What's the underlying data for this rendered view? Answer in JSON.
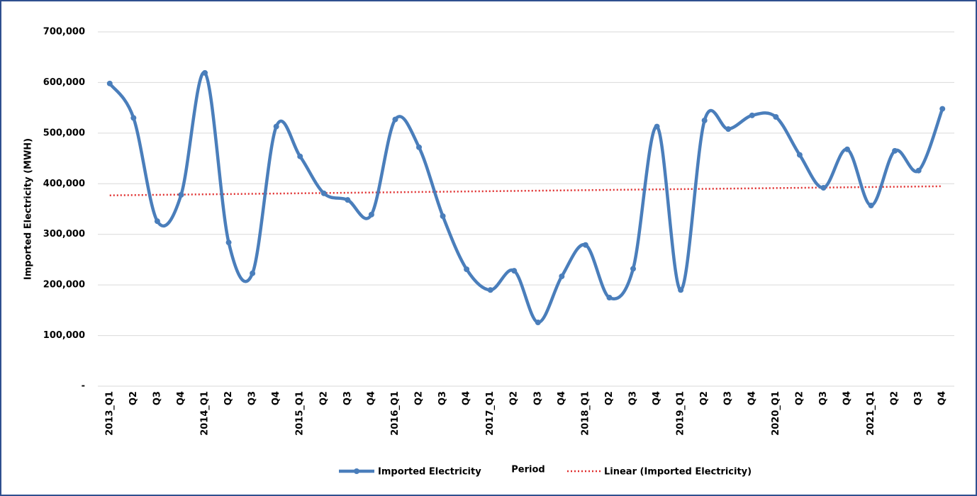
{
  "chart_data": {
    "type": "line",
    "xlabel": "Period",
    "ylabel": "Imported Electricity (MWH)",
    "categories": [
      "2013_Q1",
      "Q2",
      "Q3",
      "Q4",
      "2014_Q1",
      "Q2",
      "Q3",
      "Q4",
      "2015_Q1",
      "Q2",
      "Q3",
      "Q4",
      "2016_Q1",
      "Q2",
      "Q3",
      "Q4",
      "2017_Q1",
      "Q2",
      "Q3",
      "Q4",
      "2018_Q1",
      "Q2",
      "Q3",
      "Q4",
      "2019_Q1",
      "Q2",
      "Q3",
      "Q4",
      "2020_Q1",
      "Q2",
      "Q3",
      "Q4",
      "2021_Q1",
      "Q2",
      "Q3",
      "Q4"
    ],
    "series": [
      {
        "name": "Imported Electricity",
        "color": "#4a7ebb",
        "values": [
          598000,
          530000,
          326000,
          378000,
          619000,
          284000,
          223000,
          513000,
          454000,
          381000,
          368000,
          339000,
          527000,
          472000,
          336000,
          231000,
          190000,
          228000,
          126000,
          217000,
          279000,
          175000,
          232000,
          513000,
          190000,
          525000,
          508000,
          535000,
          532000,
          457000,
          392000,
          468000,
          357000,
          465000,
          426000,
          548000
        ]
      }
    ],
    "trendline": {
      "name": "Linear (Imported Electricity)",
      "color": "#e03030",
      "start": 377000,
      "end": 395000
    },
    "ylim": [
      0,
      700000
    ],
    "yticks": [
      {
        "value": 0,
        "label": "-"
      },
      {
        "value": 100000,
        "label": "100,000"
      },
      {
        "value": 200000,
        "label": "200,000"
      },
      {
        "value": 300000,
        "label": "300,000"
      },
      {
        "value": 400000,
        "label": "400,000"
      },
      {
        "value": 500000,
        "label": "500,000"
      },
      {
        "value": 600000,
        "label": "600,000"
      },
      {
        "value": 700000,
        "label": "700,000"
      }
    ],
    "grid": true
  }
}
